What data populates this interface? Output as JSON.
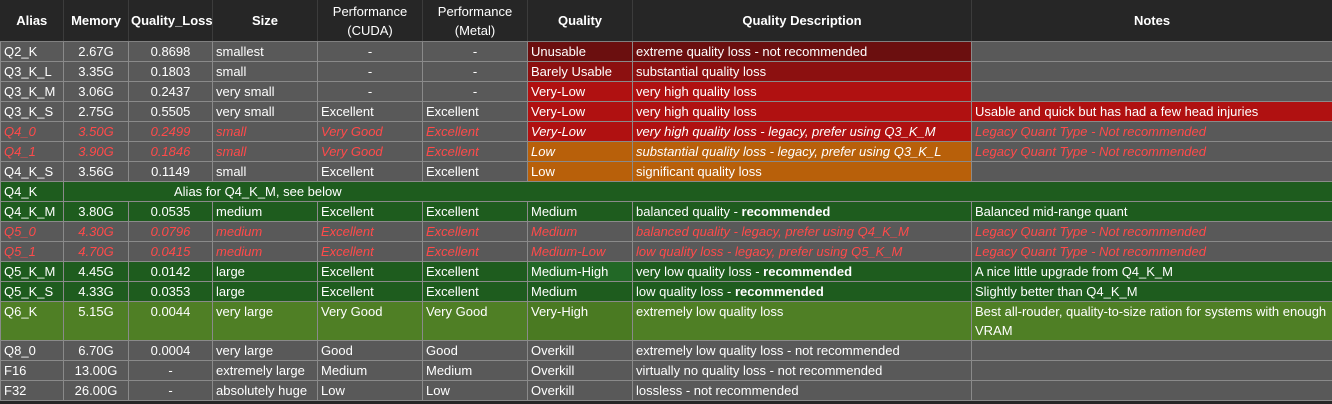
{
  "headers": {
    "alias": "Alias",
    "memory": "Memory",
    "quality_loss": "Quality_Loss",
    "size": "Size",
    "perf_cuda_1": "Performance",
    "perf_cuda_2": "(CUDA)",
    "perf_metal_1": "Performance",
    "perf_metal_2": "(Metal)",
    "quality": "Quality",
    "quality_description": "Quality Description",
    "notes": "Notes"
  },
  "rows": [
    {
      "alias": "Q2_K",
      "memory": "2.67G",
      "quality_loss": "0.8698",
      "size": "smallest",
      "cuda": "-",
      "metal": "-",
      "quality": "Unusable",
      "desc": "extreme quality loss - not recommended",
      "desc_bold": "",
      "notes": ""
    },
    {
      "alias": "Q3_K_L",
      "memory": "3.35G",
      "quality_loss": "0.1803",
      "size": "small",
      "cuda": "-",
      "metal": "-",
      "quality": "Barely Usable",
      "desc": "substantial quality loss",
      "desc_bold": "",
      "notes": ""
    },
    {
      "alias": "Q3_K_M",
      "memory": "3.06G",
      "quality_loss": "0.2437",
      "size": "very small",
      "cuda": "-",
      "metal": "-",
      "quality": "Very-Low",
      "desc": "very high quality loss",
      "desc_bold": "",
      "notes": ""
    },
    {
      "alias": "Q3_K_S",
      "memory": "2.75G",
      "quality_loss": "0.5505",
      "size": "very small",
      "cuda": "Excellent",
      "metal": "Excellent",
      "quality": "Very-Low",
      "desc": "very high quality loss",
      "desc_bold": "",
      "notes": "Usable and quick but has had a few head injuries"
    },
    {
      "alias": "Q4_0",
      "memory": "3.50G",
      "quality_loss": "0.2499",
      "size": "small",
      "cuda": "Very Good",
      "metal": "Excellent",
      "quality": "Very-Low",
      "desc": "very high quality loss - legacy, prefer using Q3_K_M",
      "desc_bold": "",
      "notes": "Legacy Quant Type - Not recommended"
    },
    {
      "alias": "Q4_1",
      "memory": "3.90G",
      "quality_loss": "0.1846",
      "size": "small",
      "cuda": "Very Good",
      "metal": "Excellent",
      "quality": "Low",
      "desc": "substantial quality loss - legacy, prefer using Q3_K_L",
      "desc_bold": "",
      "notes": "Legacy Quant Type - Not recommended"
    },
    {
      "alias": "Q4_K_S",
      "memory": "3.56G",
      "quality_loss": "0.1149",
      "size": "small",
      "cuda": "Excellent",
      "metal": "Excellent",
      "quality": "Low",
      "desc": "significant quality loss",
      "desc_bold": "",
      "notes": ""
    },
    {
      "alias": "Q4_K",
      "merged": "Alias for Q4_K_M, see below"
    },
    {
      "alias": "Q4_K_M",
      "memory": "3.80G",
      "quality_loss": "0.0535",
      "size": "medium",
      "cuda": "Excellent",
      "metal": "Excellent",
      "quality": "Medium",
      "desc": "balanced quality - ",
      "desc_bold": "recommended",
      "notes": "Balanced mid-range quant"
    },
    {
      "alias": "Q5_0",
      "memory": "4.30G",
      "quality_loss": "0.0796",
      "size": "medium",
      "cuda": "Excellent",
      "metal": "Excellent",
      "quality": "Medium",
      "desc": "balanced quality - legacy, prefer using Q4_K_M",
      "desc_bold": "",
      "notes": "Legacy Quant Type - Not recommended"
    },
    {
      "alias": "Q5_1",
      "memory": "4.70G",
      "quality_loss": "0.0415",
      "size": "medium",
      "cuda": "Excellent",
      "metal": "Excellent",
      "quality": "Medium-Low",
      "desc": "low quality loss - legacy, prefer using Q5_K_M",
      "desc_bold": "",
      "notes": "Legacy Quant Type - Not recommended"
    },
    {
      "alias": "Q5_K_M",
      "memory": "4.45G",
      "quality_loss": "0.0142",
      "size": "large",
      "cuda": "Excellent",
      "metal": "Excellent",
      "quality": "Medium-High",
      "desc": "very low quality loss - ",
      "desc_bold": "recommended",
      "notes": "A nice little upgrade from Q4_K_M"
    },
    {
      "alias": "Q5_K_S",
      "memory": "4.33G",
      "quality_loss": "0.0353",
      "size": "large",
      "cuda": "Excellent",
      "metal": "Excellent",
      "quality": "Medium",
      "desc": "low quality loss - ",
      "desc_bold": "recommended",
      "notes": "Slightly better than Q4_K_M"
    },
    {
      "alias": "Q6_K",
      "memory": "5.15G",
      "quality_loss": "0.0044",
      "size": "very large",
      "cuda": "Very Good",
      "metal": "Very Good",
      "quality": "Very-High",
      "desc": "extremely low quality loss",
      "desc_bold": "",
      "notes": "Best all-rouder, quality-to-size ration for systems with enough VRAM"
    },
    {
      "alias": "Q8_0",
      "memory": "6.70G",
      "quality_loss": "0.0004",
      "size": "very large",
      "cuda": "Good",
      "metal": "Good",
      "quality": "Overkill",
      "desc": "extremely low quality loss - not recommended",
      "desc_bold": "",
      "notes": ""
    },
    {
      "alias": "F16",
      "memory": "13.00G",
      "quality_loss": "-",
      "size": "extremely large",
      "cuda": "Medium",
      "metal": "Medium",
      "quality": "Overkill",
      "desc": "virtually no quality loss - not recommended",
      "desc_bold": "",
      "notes": ""
    },
    {
      "alias": "F32",
      "memory": "26.00G",
      "quality_loss": "-",
      "size": "absolutely huge",
      "cuda": "Low",
      "metal": "Low",
      "quality": "Overkill",
      "desc": "lossless - not recommended",
      "desc_bold": "",
      "notes": ""
    }
  ],
  "colors": {
    "header_bg": "#262626",
    "gray_row": "#595959",
    "green_dark": "#1e5c1e",
    "green_mid": "#3d6b1e",
    "green_light": "#4f7f25",
    "unusable": "#6b0f0f",
    "barely_usable": "#8c1010",
    "very_low": "#b01111",
    "low": "#b8600a",
    "legacy_text": "#ff4a4a"
  }
}
